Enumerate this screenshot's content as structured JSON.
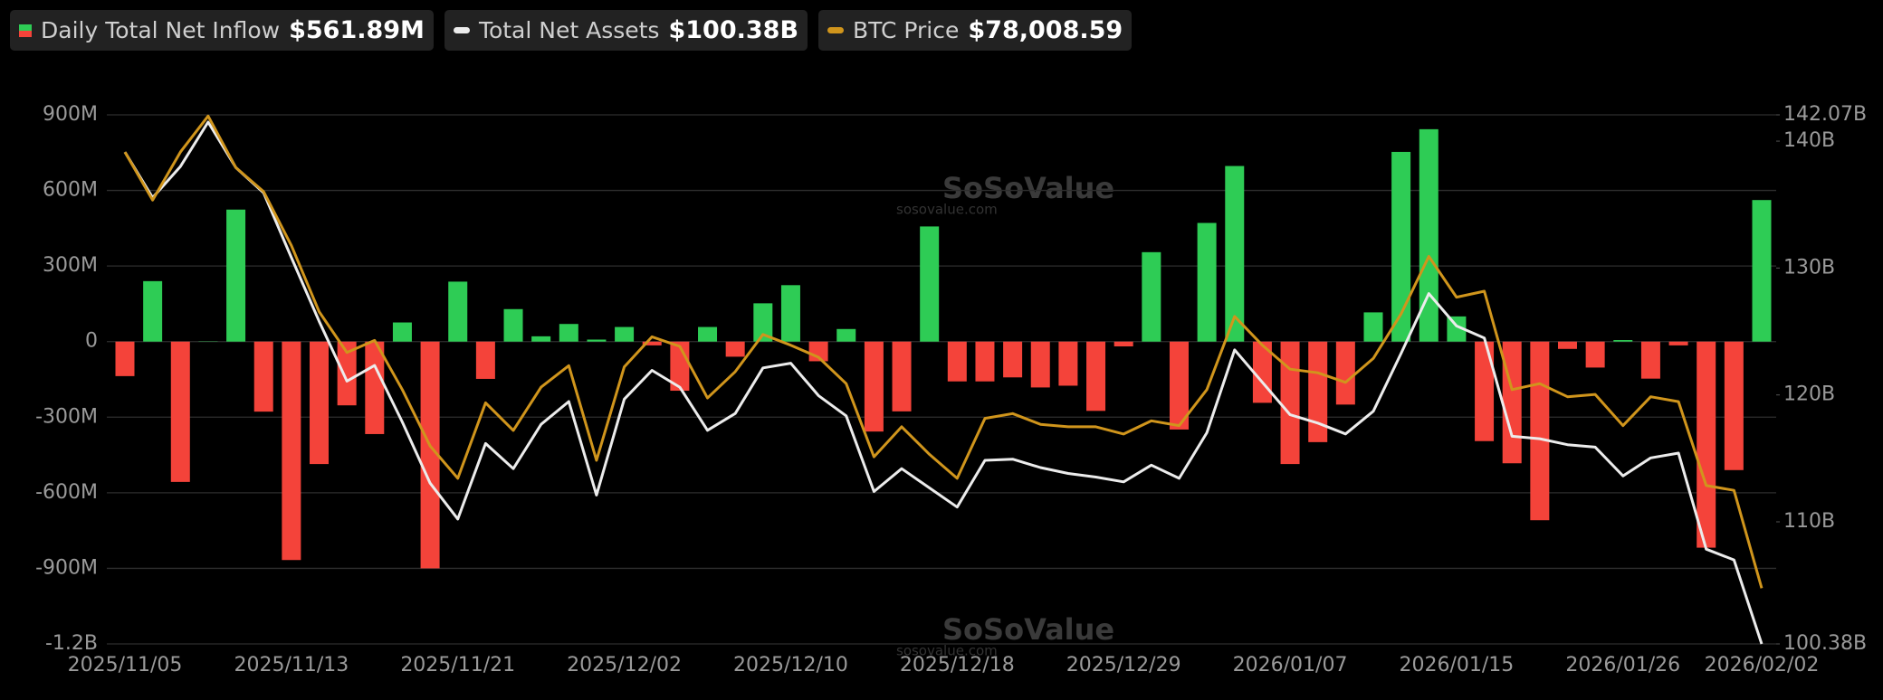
{
  "chart_data": {
    "type": "bar",
    "categories": [
      "2025/11/05",
      null,
      null,
      null,
      null,
      null,
      "2025/11/13",
      null,
      null,
      null,
      null,
      null,
      "2025/11/21",
      null,
      null,
      null,
      null,
      null,
      "2025/12/02",
      null,
      null,
      null,
      null,
      null,
      "2025/12/10",
      null,
      null,
      null,
      null,
      null,
      "2025/12/18",
      null,
      null,
      null,
      null,
      null,
      "2025/12/29",
      null,
      null,
      null,
      null,
      null,
      "2026/01/07",
      null,
      null,
      null,
      null,
      null,
      "2026/01/15",
      null,
      null,
      null,
      null,
      null,
      "2026/01/26",
      null,
      null,
      null,
      null,
      "2026/02/02"
    ],
    "series": [
      {
        "name": "Daily Total Net Inflow",
        "type": "bar",
        "axis": "y",
        "latest_label": "$561.89M",
        "colors": {
          "positive": "#2ecc55",
          "negative": "#f4433a"
        },
        "values": [
          -137,
          240,
          -557,
          1.15,
          524,
          -278,
          -867,
          -486,
          -253,
          -367,
          76,
          -900,
          238,
          -148,
          129,
          21,
          70,
          8,
          58,
          -15,
          -195,
          58,
          -60,
          152,
          224,
          -78,
          50,
          -357,
          -277,
          457,
          -158,
          -158,
          -142,
          -182,
          -175,
          -275,
          -19,
          355,
          -349,
          471,
          697,
          -243,
          -486,
          -399,
          -250,
          116,
          753,
          843,
          100,
          -395,
          -483,
          -709,
          -29,
          -103,
          6,
          -147,
          -15,
          -818,
          -510,
          561.89
        ]
      },
      {
        "name": "Total Net Assets",
        "type": "line",
        "axis": "y2",
        "latest_label": "$100.38B",
        "color": "#ececec",
        "values": [
          139.14,
          135.55,
          138.0,
          141.5,
          137.91,
          135.93,
          130.82,
          125.81,
          121.09,
          122.32,
          117.87,
          113.05,
          110.22,
          116.17,
          114.19,
          117.68,
          119.48,
          112.11,
          119.67,
          121.94,
          120.61,
          117.21,
          118.54,
          122.13,
          122.5,
          119.95,
          118.35,
          112.39,
          114.19,
          112.67,
          111.16,
          114.85,
          114.94,
          114.28,
          113.81,
          113.53,
          113.15,
          114.47,
          113.43,
          117.02,
          123.55,
          121.0,
          118.44,
          117.78,
          116.93,
          118.72,
          123.26,
          127.99,
          125.44,
          124.49,
          116.74,
          116.55,
          116.08,
          115.89,
          113.62,
          115.04,
          115.42,
          107.85,
          107.0,
          100.38
        ]
      },
      {
        "name": "BTC Price",
        "type": "line",
        "axis": "y3",
        "latest_label": "$78,008.59",
        "color": "#d0951c",
        "values": [
          103892,
          101044,
          103892,
          106028,
          102966,
          101542,
          98338,
          94422,
          92002,
          92714,
          89794,
          86448,
          84526,
          89011,
          87374,
          89937,
          91218,
          85594,
          91147,
          92927,
          92358,
          89296,
          90862,
          93070,
          92429,
          91717,
          90150,
          85807,
          87587,
          85950,
          84526,
          88086,
          88370,
          87730,
          87587,
          87587,
          87160,
          87943,
          87658,
          89794,
          94138,
          92429,
          91005,
          90791,
          90222,
          91646,
          94280,
          97698,
          95277,
          95633,
          89794,
          90150,
          89367,
          89510,
          87658,
          89367,
          89082,
          84098,
          83814,
          78008.59
        ]
      }
    ],
    "ylim": [
      -1200,
      900
    ],
    "yticks": [
      {
        "value": -1200,
        "label": "-1.2B"
      },
      {
        "value": -900,
        "label": "-900M"
      },
      {
        "value": -600,
        "label": "-600M"
      },
      {
        "value": -300,
        "label": "-300M"
      },
      0,
      {
        "value": 300,
        "label": "300M"
      },
      {
        "value": 600,
        "label": "600M"
      },
      {
        "value": 900,
        "label": "900M"
      }
    ],
    "y2lim": [
      100.38,
      142.07
    ],
    "y2ticks": [
      {
        "value": 100.38,
        "label": "100.38B"
      },
      {
        "value": 110,
        "label": "110B"
      },
      {
        "value": 120,
        "label": "120B"
      },
      {
        "value": 130,
        "label": "130B"
      },
      {
        "value": 140,
        "label": "140B"
      },
      {
        "value": 142.07,
        "label": "142.07B"
      }
    ],
    "y3lim": [
      74700,
      106100
    ],
    "grid": true,
    "watermark": {
      "title": "SoSoValue",
      "url": "sosovalue.com"
    }
  }
}
